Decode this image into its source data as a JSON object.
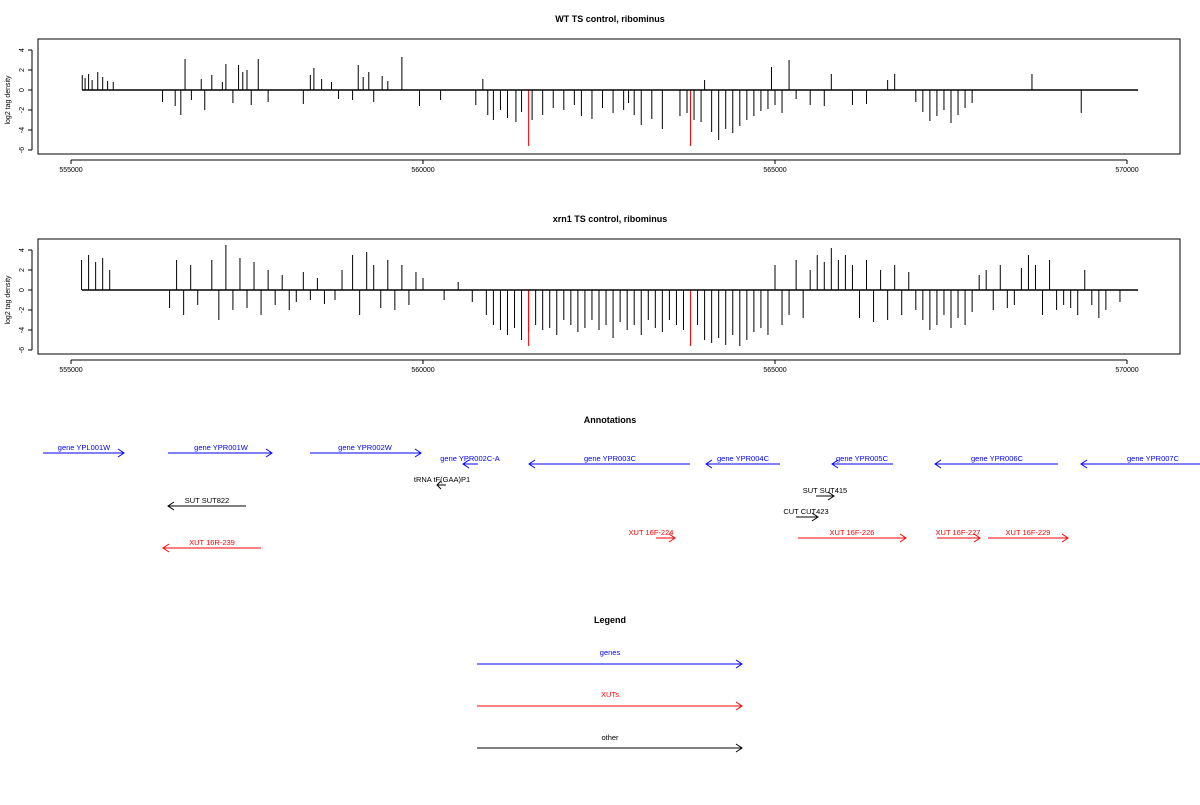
{
  "chart_data": [
    {
      "type": "bar",
      "title": "WT TS control, ribominus",
      "xlabel": "",
      "ylabel": "log2 tag density",
      "xlim": [
        555000,
        570000
      ],
      "ylim": [
        -6,
        5
      ],
      "xticks": [
        "555000",
        "560000",
        "565000",
        "570000"
      ],
      "yticks": [
        "4",
        "2",
        "0",
        "-2",
        "-4",
        "-6"
      ],
      "highlight_color": "#ff0000",
      "bar_color": "#000000",
      "x": [
        555160,
        555200,
        555250,
        555300,
        555380,
        555450,
        555520,
        555600,
        556300,
        556480,
        556560,
        556620,
        556710,
        556850,
        556900,
        557000,
        557150,
        557200,
        557300,
        557380,
        557440,
        557500,
        557560,
        557660,
        557800,
        558300,
        558400,
        558450,
        558560,
        558700,
        558800,
        559000,
        559080,
        559150,
        559230,
        559300,
        559420,
        559500,
        559700,
        559950,
        560250,
        560750,
        560850,
        560920,
        561000,
        561100,
        561200,
        561320,
        561400,
        561550,
        561700,
        561850,
        562000,
        562150,
        562250,
        562400,
        562550,
        562700,
        562850,
        562920,
        563000,
        563100,
        563250,
        563400,
        563650,
        563750,
        563850,
        563950,
        564000,
        564100,
        564200,
        564300,
        564400,
        564500,
        564600,
        564700,
        564800,
        564900,
        564950,
        565000,
        565100,
        565200,
        565300,
        565500,
        565700,
        565800,
        566100,
        566300,
        566600,
        566700,
        567000,
        567100,
        567200,
        567300,
        567400,
        567500,
        567600,
        567700,
        567800,
        568650,
        569350,
        561500,
        563800
      ],
      "values": [
        1.5,
        1.2,
        1.6,
        1.0,
        1.8,
        1.3,
        0.9,
        0.8,
        -1.2,
        -1.6,
        -2.5,
        3.1,
        -1.0,
        1.1,
        -2.0,
        1.5,
        0.8,
        2.6,
        -1.3,
        2.5,
        1.8,
        2.0,
        -1.5,
        3.1,
        -1.2,
        -1.4,
        1.5,
        2.2,
        1.1,
        0.8,
        -0.9,
        -1.0,
        2.5,
        1.3,
        1.8,
        -1.2,
        1.4,
        0.9,
        3.3,
        -1.6,
        -1.0,
        -1.5,
        1.1,
        -2.5,
        -3.0,
        -2.0,
        -2.8,
        -3.2,
        -2.2,
        -3.0,
        -2.5,
        -1.8,
        -2.0,
        -1.5,
        -2.6,
        -2.9,
        -1.8,
        -2.3,
        -2.0,
        -1.3,
        -2.5,
        -3.5,
        -2.9,
        -3.9,
        -2.6,
        -2.3,
        -3.0,
        -3.2,
        1.0,
        -4.2,
        -5.0,
        -3.9,
        -4.3,
        -3.6,
        -3.0,
        -2.6,
        -2.1,
        -1.9,
        2.3,
        -1.5,
        -2.3,
        3.0,
        -0.9,
        -1.5,
        -1.6,
        1.6,
        -1.5,
        -1.4,
        1.0,
        1.6,
        -1.2,
        -2.2,
        -3.1,
        -2.6,
        -2.0,
        -3.3,
        -2.5,
        -1.8,
        -1.3,
        1.6,
        -2.3,
        -5.6,
        -5.6
      ],
      "highlight_x": [
        561500,
        563800
      ]
    },
    {
      "type": "bar",
      "title": "xrn1 TS control, ribominus",
      "xlabel": "",
      "ylabel": "log2 tag density",
      "xlim": [
        555000,
        570000
      ],
      "ylim": [
        -6,
        5
      ],
      "xticks": [
        "555000",
        "560000",
        "565000",
        "570000"
      ],
      "yticks": [
        "4",
        "2",
        "0",
        "-2",
        "-4",
        "-6"
      ],
      "highlight_color": "#ff0000",
      "bar_color": "#000000",
      "x": [
        555150,
        555250,
        555350,
        555450,
        555550,
        556400,
        556500,
        556600,
        556700,
        556800,
        557000,
        557100,
        557200,
        557300,
        557400,
        557500,
        557600,
        557700,
        557800,
        557900,
        558000,
        558100,
        558200,
        558300,
        558400,
        558500,
        558600,
        558750,
        558850,
        559000,
        559100,
        559200,
        559300,
        559400,
        559500,
        559600,
        559700,
        559800,
        559900,
        560000,
        560300,
        560500,
        560700,
        560900,
        561000,
        561100,
        561200,
        561300,
        561400,
        561500,
        561600,
        561700,
        561800,
        561900,
        562000,
        562100,
        562200,
        562300,
        562400,
        562500,
        562600,
        562700,
        562800,
        562900,
        563000,
        563100,
        563200,
        563300,
        563400,
        563500,
        563600,
        563700,
        563900,
        564000,
        564100,
        564200,
        564300,
        564400,
        564500,
        564600,
        564700,
        564800,
        564900,
        565000,
        565100,
        565200,
        565300,
        565400,
        565500,
        565600,
        565700,
        565800,
        565900,
        566000,
        566100,
        566200,
        566300,
        566400,
        566500,
        566600,
        566700,
        566800,
        566900,
        567000,
        567100,
        567200,
        567300,
        567400,
        567500,
        567600,
        567700,
        567800,
        567900,
        568000,
        568100,
        568200,
        568300,
        568400,
        568500,
        568600,
        568700,
        568800,
        568900,
        569000,
        569100,
        569200,
        569300,
        569400,
        569500,
        569600,
        569700,
        569900,
        561500,
        563800
      ],
      "values": [
        3.0,
        3.5,
        2.8,
        3.2,
        2.0,
        -1.8,
        3.0,
        -2.5,
        2.5,
        -1.5,
        3.0,
        -3.0,
        4.5,
        -2.0,
        3.2,
        -1.8,
        2.8,
        -2.5,
        2.0,
        -1.5,
        1.5,
        -2.0,
        -1.2,
        1.8,
        -1.0,
        1.2,
        -1.4,
        -1.0,
        2.0,
        3.5,
        -2.5,
        3.8,
        2.5,
        -1.8,
        3.0,
        -2.0,
        2.5,
        -1.5,
        1.8,
        1.2,
        -1.0,
        0.8,
        -1.2,
        -2.5,
        -3.5,
        -4.0,
        -4.5,
        -3.8,
        -5.0,
        -4.2,
        -3.5,
        -4.0,
        -3.8,
        -4.5,
        -3.0,
        -3.5,
        -4.2,
        -3.8,
        -3.0,
        -4.0,
        -3.5,
        -4.8,
        -3.2,
        -4.0,
        -3.5,
        -4.5,
        -3.0,
        -3.8,
        -4.2,
        -3.0,
        -3.5,
        -4.0,
        -3.5,
        -5.0,
        -5.3,
        -4.8,
        -5.5,
        -4.5,
        -5.6,
        -5.0,
        -4.2,
        -3.8,
        -4.5,
        2.5,
        -3.5,
        -2.5,
        3.0,
        -2.8,
        2.0,
        3.5,
        2.8,
        4.2,
        3.0,
        3.5,
        2.5,
        -2.8,
        3.0,
        -3.2,
        2.0,
        -3.0,
        2.5,
        -2.5,
        1.8,
        -2.0,
        -3.0,
        -4.0,
        -3.5,
        -2.5,
        -3.8,
        -2.8,
        -3.5,
        -2.2,
        1.5,
        2.0,
        -2.0,
        2.5,
        -1.8,
        -1.5,
        2.2,
        3.5,
        2.5,
        -2.5,
        3.0,
        -2.0,
        -1.5,
        -1.8,
        -2.5,
        2.0,
        -1.5,
        -2.8,
        -2.0,
        -1.2,
        -5.6,
        -5.6
      ],
      "highlight_x": [
        561500,
        563800
      ]
    }
  ],
  "annotations": {
    "title": "Annotations",
    "features": [
      {
        "label": "gene YPL001W",
        "color": "#0000ff"
      },
      {
        "label": "gene YPR001W",
        "color": "#0000ff"
      },
      {
        "label": "gene YPR002W",
        "color": "#0000ff"
      },
      {
        "label": "gene YPR002C-A",
        "color": "#0000ff"
      },
      {
        "label": "gene YPR003C",
        "color": "#0000ff"
      },
      {
        "label": "gene YPR004C",
        "color": "#0000ff"
      },
      {
        "label": "gene YPR005C",
        "color": "#0000ff"
      },
      {
        "label": "gene YPR006C",
        "color": "#0000ff"
      },
      {
        "label": "gene YPR007C",
        "color": "#0000ff"
      },
      {
        "label": "tRNA tF(GAA)P1",
        "color": "#000000"
      },
      {
        "label": "SUT SUT822",
        "color": "#000000"
      },
      {
        "label": "SUT SUT415",
        "color": "#000000"
      },
      {
        "label": "CUT CUT423",
        "color": "#000000"
      },
      {
        "label": "XUT 16R-239",
        "color": "#ff0000"
      },
      {
        "label": "XUT 16F-224",
        "color": "#ff0000"
      },
      {
        "label": "XUT 16F-226",
        "color": "#ff0000"
      },
      {
        "label": "XUT 16F-227",
        "color": "#ff0000"
      },
      {
        "label": "XUT 16F-229",
        "color": "#ff0000"
      }
    ]
  },
  "legend": {
    "title": "Legend",
    "items": [
      {
        "label": "genes",
        "color": "#0000ff"
      },
      {
        "label": "XUTs",
        "color": "#ff0000"
      },
      {
        "label": "other",
        "color": "#000000"
      }
    ]
  }
}
